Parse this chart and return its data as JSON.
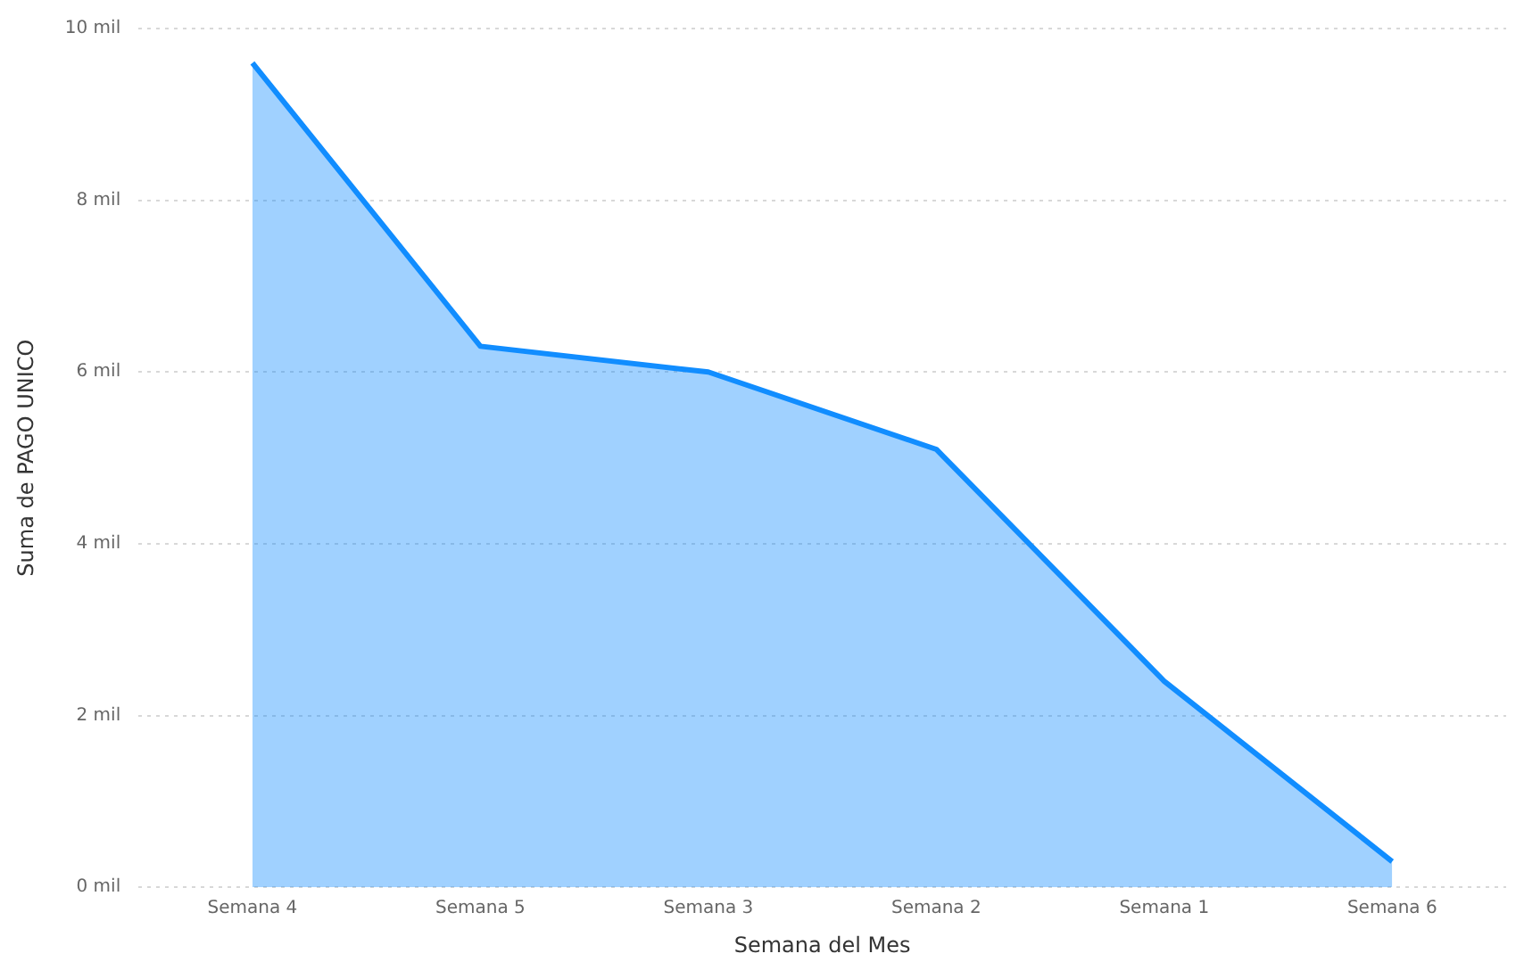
{
  "chart_data": {
    "type": "area",
    "xlabel": "Semana del Mes",
    "ylabel": "Suma de PAGO UNICO",
    "categories": [
      "Semana 4",
      "Semana 5",
      "Semana 3",
      "Semana 2",
      "Semana 1",
      "Semana 6"
    ],
    "series": [
      {
        "color": "#118dff",
        "values": [
          9.6,
          6.3,
          6.0,
          5.1,
          2.4,
          0.3
        ]
      }
    ],
    "ylim": [
      0,
      10
    ],
    "yticks": [
      {
        "value": 0,
        "label": "0 mil"
      },
      {
        "value": 2,
        "label": "2 mil"
      },
      {
        "value": 4,
        "label": "4 mil"
      },
      {
        "value": 6,
        "label": "6 mil"
      },
      {
        "value": 8,
        "label": "8 mil"
      },
      {
        "value": 10,
        "label": "10 mil"
      }
    ],
    "grid": "y",
    "legend": false,
    "marker": "none"
  }
}
